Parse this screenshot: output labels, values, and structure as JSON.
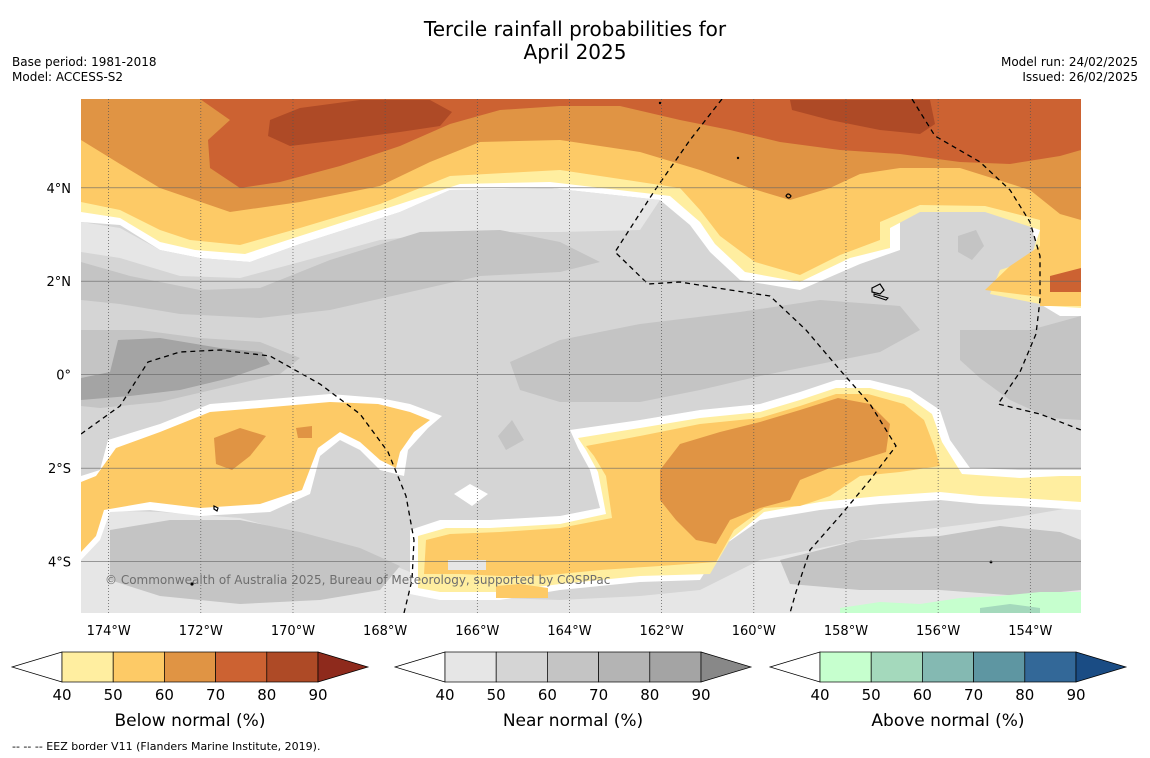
{
  "title": {
    "line1": "Tercile rainfall probabilities for",
    "line2": "April 2025"
  },
  "meta_left": {
    "base_period": "Base period: 1981-2018",
    "model": "Model: ACCESS-S2"
  },
  "meta_right": {
    "model_run": "Model run: 24/02/2025",
    "issued": "Issued: 26/02/2025"
  },
  "map": {
    "extent": {
      "lon_west": -174.6,
      "lon_east": -152.9,
      "lat_south": -5.1,
      "lat_north": 5.9
    },
    "lon_ticks": [
      {
        "value": -174,
        "label": "174°W"
      },
      {
        "value": -172,
        "label": "172°W"
      },
      {
        "value": -170,
        "label": "170°W"
      },
      {
        "value": -168,
        "label": "168°W"
      },
      {
        "value": -166,
        "label": "166°W"
      },
      {
        "value": -164,
        "label": "164°W"
      },
      {
        "value": -162,
        "label": "162°W"
      },
      {
        "value": -160,
        "label": "160°W"
      },
      {
        "value": -158,
        "label": "158°W"
      },
      {
        "value": -156,
        "label": "156°W"
      },
      {
        "value": -154,
        "label": "154°W"
      }
    ],
    "lat_ticks": [
      {
        "value": 4,
        "label": "4°N"
      },
      {
        "value": 2,
        "label": "2°N"
      },
      {
        "value": 0,
        "label": "0°"
      },
      {
        "value": -2,
        "label": "2°S"
      },
      {
        "value": -4,
        "label": "4°S"
      }
    ],
    "copyright": "© Commonwealth of Australia 2025, Bureau of Meteorology, supported by COSPPac"
  },
  "colorbars": [
    {
      "title": "Below normal (%)",
      "ticks": [
        "40",
        "50",
        "60",
        "70",
        "80",
        "90"
      ],
      "colors": [
        "#ffeea0",
        "#fdca66",
        "#e09444",
        "#cc6232",
        "#ae4a26"
      ],
      "over": "#8e2a1c"
    },
    {
      "title": "Near normal (%)",
      "ticks": [
        "40",
        "50",
        "60",
        "70",
        "80",
        "90"
      ],
      "colors": [
        "#e6e6e6",
        "#d5d5d5",
        "#c4c4c4",
        "#b4b4b4",
        "#a4a4a4"
      ],
      "over": "#888888"
    },
    {
      "title": "Above normal (%)",
      "ticks": [
        "40",
        "50",
        "60",
        "70",
        "80",
        "90"
      ],
      "colors": [
        "#c6ffce",
        "#a4d9bc",
        "#84b9b2",
        "#5e96a2",
        "#336898"
      ],
      "over": "#1a4c84"
    }
  ],
  "footer": "--  --  -- EEZ border V11 (Flanders Marine Institute, 2019)."
}
